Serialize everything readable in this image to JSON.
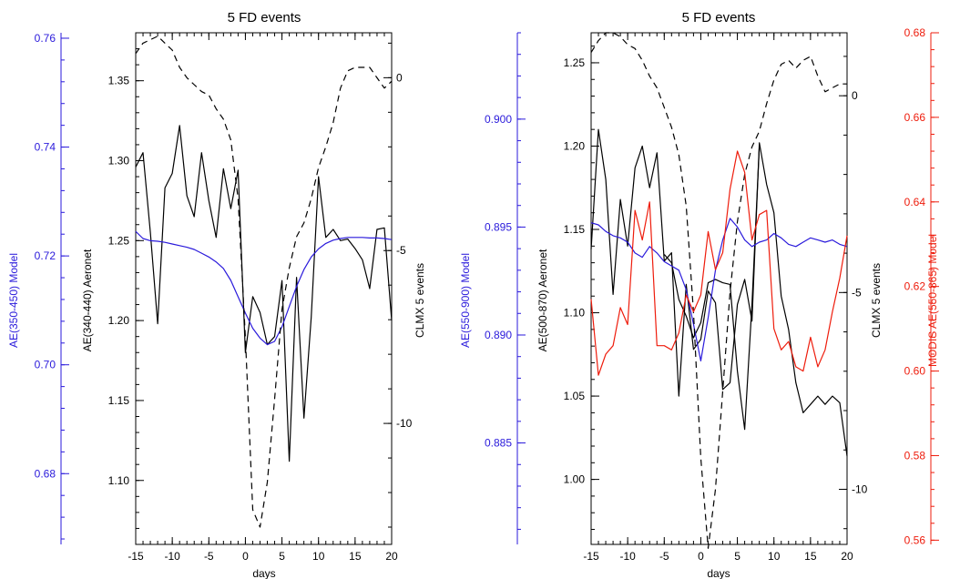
{
  "chart_data": [
    {
      "type": "line",
      "title": "5 FD events",
      "xlabel": "days",
      "xlim": [
        -15,
        20
      ],
      "xticks": [
        -15,
        -10,
        -5,
        0,
        5,
        10,
        15,
        20
      ],
      "axes": {
        "aeronet": {
          "label": "AE(340-440) Aeronet",
          "ylim": [
            1.06,
            1.38
          ],
          "ticks": [
            1.1,
            1.15,
            1.2,
            1.25,
            1.3,
            1.35
          ],
          "color": "#000000"
        },
        "model": {
          "label": "AE(350-450) Model",
          "ylim": [
            0.667,
            0.761
          ],
          "ticks": [
            0.68,
            0.7,
            0.72,
            0.74,
            0.76
          ],
          "color": "#2a1adb"
        },
        "clmx": {
          "label": "CLMX 5 events",
          "ylim": [
            -13.5,
            1.3
          ],
          "ticks": [
            -10,
            -5,
            0
          ],
          "color": "#000000"
        }
      },
      "series": [
        {
          "axis": "aeronet",
          "style": "solid",
          "color": "#000000",
          "x": [
            -15,
            -14,
            -13,
            -12,
            -11,
            -10,
            -9,
            -8,
            -7,
            -6,
            -5,
            -4,
            -3,
            -2,
            -1,
            0,
            1,
            2,
            3,
            4,
            5,
            6,
            7,
            8,
            9,
            10,
            11,
            12,
            13,
            14,
            15,
            16,
            17,
            18,
            19,
            20
          ],
          "values": [
            1.296,
            1.305,
            1.255,
            1.198,
            1.283,
            1.292,
            1.322,
            1.278,
            1.265,
            1.305,
            1.275,
            1.252,
            1.295,
            1.27,
            1.294,
            1.18,
            1.215,
            1.205,
            1.185,
            1.19,
            1.225,
            1.112,
            1.227,
            1.139,
            1.202,
            1.29,
            1.252,
            1.257,
            1.25,
            1.251,
            1.245,
            1.238,
            1.22,
            1.257,
            1.258,
            1.2
          ]
        },
        {
          "axis": "model",
          "style": "solid",
          "color": "#2a1adb",
          "x": [
            -15,
            -14,
            -13,
            -12,
            -11,
            -10,
            -9,
            -8,
            -7,
            -6,
            -5,
            -4,
            -3,
            -2,
            -1,
            0,
            1,
            2,
            3,
            4,
            5,
            6,
            7,
            8,
            9,
            10,
            11,
            12,
            13,
            14,
            15,
            16,
            17,
            18,
            19,
            20
          ],
          "values": [
            0.7245,
            0.7232,
            0.7228,
            0.7227,
            0.7225,
            0.7222,
            0.7219,
            0.7216,
            0.7212,
            0.7205,
            0.7198,
            0.7189,
            0.7177,
            0.7155,
            0.7125,
            0.7095,
            0.7067,
            0.7049,
            0.7037,
            0.7043,
            0.707,
            0.7107,
            0.7144,
            0.7175,
            0.7198,
            0.7213,
            0.7223,
            0.7229,
            0.7232,
            0.7234,
            0.7234,
            0.7234,
            0.7233,
            0.7233,
            0.7232,
            0.723
          ]
        },
        {
          "axis": "clmx",
          "style": "dashed",
          "color": "#000000",
          "x": [
            -15,
            -14,
            -13,
            -12,
            -11,
            -10,
            -9,
            -8,
            -7,
            -6,
            -5,
            -4,
            -3,
            -2,
            -1,
            0,
            1,
            2,
            3,
            4,
            5,
            6,
            7,
            8,
            9,
            10,
            11,
            12,
            13,
            14,
            15,
            16,
            17,
            18,
            19,
            20
          ],
          "values": [
            0.7,
            1.0,
            1.1,
            1.2,
            1.0,
            0.8,
            0.3,
            0.0,
            -0.2,
            -0.4,
            -0.5,
            -0.9,
            -1.2,
            -1.8,
            -3.5,
            -7.5,
            -12.5,
            -13.0,
            -11.7,
            -9.3,
            -6.7,
            -5.5,
            -4.6,
            -4.2,
            -3.5,
            -2.6,
            -2.0,
            -1.3,
            -0.3,
            0.2,
            0.3,
            0.3,
            0.3,
            0.0,
            -0.3,
            -0.1
          ]
        }
      ]
    },
    {
      "type": "line",
      "title": "5 FD events",
      "xlabel": "days",
      "xlim": [
        -15,
        20
      ],
      "xticks": [
        -15,
        -10,
        -5,
        0,
        5,
        10,
        15,
        20
      ],
      "axes": {
        "aeronet": {
          "label": "AE(500-870) Aeronet",
          "ylim": [
            0.961,
            1.268
          ],
          "ticks": [
            1.0,
            1.05,
            1.1,
            1.15,
            1.2,
            1.25
          ],
          "color": "#000000"
        },
        "model": {
          "label": "AE(550-900) Model",
          "ylim": [
            0.8803,
            0.904
          ],
          "ticks": [
            0.885,
            0.89,
            0.895,
            0.9
          ],
          "color": "#2a1adb"
        },
        "clmx": {
          "label": "CLMX 5 events",
          "ylim": [
            -11.4,
            1.6
          ],
          "ticks": [
            -10,
            -5,
            0
          ],
          "color": "#000000"
        },
        "modis": {
          "label": "MODIS AE(550-865) Model",
          "ylim": [
            0.559,
            0.68
          ],
          "ticks": [
            0.56,
            0.58,
            0.6,
            0.62,
            0.64,
            0.66,
            0.68
          ],
          "color": "#ee1c0c"
        }
      },
      "series": [
        {
          "axis": "aeronet",
          "style": "solid",
          "color": "#000000",
          "x": [
            -15,
            -14,
            -13,
            -12,
            -11,
            -10,
            -9,
            -8,
            -7,
            -6,
            -5,
            -4,
            -3,
            -2,
            -1,
            0,
            1,
            2,
            3,
            4,
            5,
            6,
            7,
            8,
            9,
            10,
            11,
            12,
            13,
            14,
            15,
            16,
            17,
            18,
            19,
            20
          ],
          "values": [
            1.138,
            1.21,
            1.18,
            1.111,
            1.168,
            1.14,
            1.187,
            1.2,
            1.175,
            1.196,
            1.131,
            1.136,
            1.05,
            1.117,
            1.078,
            1.084,
            1.113,
            1.106,
            1.054,
            1.058,
            1.105,
            1.12,
            1.095,
            1.202,
            1.177,
            1.16,
            1.11,
            1.09,
            1.058,
            1.04,
            1.045,
            1.05,
            1.045,
            1.05,
            1.046,
            1.014
          ]
        },
        {
          "axis": "aeronet",
          "style": "solid",
          "color": "#000000",
          "x": [
            -5,
            -4,
            -3,
            -2,
            -1,
            0,
            1,
            2,
            3,
            4,
            5,
            6,
            7,
            8
          ],
          "values": [
            1.135,
            1.13,
            1.108,
            1.098,
            1.085,
            1.094,
            1.118,
            1.12,
            1.118,
            1.117,
            1.065,
            1.03,
            1.105,
            1.2
          ]
        },
        {
          "axis": "model",
          "style": "solid",
          "color": "#2a1adb",
          "x": [
            -15,
            -14,
            -13,
            -12,
            -11,
            -10,
            -9,
            -8,
            -7,
            -6,
            -5,
            -4,
            -3,
            -2,
            -1,
            0,
            1,
            2,
            3,
            4,
            5,
            6,
            7,
            8,
            9,
            10,
            11,
            12,
            13,
            14,
            15,
            16,
            17,
            18,
            19,
            20
          ],
          "values": [
            0.8952,
            0.8951,
            0.8948,
            0.8946,
            0.8945,
            0.8943,
            0.8938,
            0.8936,
            0.8941,
            0.8938,
            0.8934,
            0.8932,
            0.893,
            0.8921,
            0.8905,
            0.8888,
            0.8908,
            0.893,
            0.8944,
            0.8954,
            0.895,
            0.8944,
            0.8941,
            0.8943,
            0.8944,
            0.8947,
            0.8945,
            0.8942,
            0.8941,
            0.8943,
            0.8945,
            0.8944,
            0.8943,
            0.8944,
            0.8942,
            0.8941
          ]
        },
        {
          "axis": "clmx",
          "style": "dashed",
          "color": "#000000",
          "x": [
            -15,
            -14,
            -13,
            -12,
            -11,
            -10,
            -9,
            -8,
            -7,
            -6,
            -5,
            -4,
            -3,
            -2,
            -1,
            0,
            1,
            2,
            3,
            4,
            5,
            6,
            7,
            8,
            9,
            10,
            11,
            12,
            13,
            14,
            15,
            16,
            17,
            18,
            19,
            20
          ],
          "values": [
            1.1,
            1.4,
            1.6,
            1.6,
            1.5,
            1.3,
            1.2,
            0.9,
            0.5,
            0.2,
            -0.3,
            -0.8,
            -1.5,
            -2.8,
            -5.5,
            -9.2,
            -11.5,
            -10.0,
            -7.5,
            -5.0,
            -3.2,
            -2.0,
            -1.3,
            -0.9,
            -0.2,
            0.4,
            0.8,
            0.9,
            0.7,
            0.9,
            1.0,
            0.5,
            0.1,
            0.2,
            0.3,
            0.3
          ]
        },
        {
          "axis": "modis",
          "style": "solid",
          "color": "#ee1c0c",
          "x": [
            -15,
            -14,
            -13,
            -12,
            -11,
            -10,
            -9,
            -8,
            -7,
            -6,
            -5,
            -4,
            -3,
            -2,
            -1,
            0,
            1,
            2,
            3,
            4,
            5,
            6,
            7,
            8,
            9,
            10,
            11,
            12,
            13,
            14,
            15,
            16,
            17,
            18,
            19,
            20
          ],
          "values": [
            0.617,
            0.599,
            0.604,
            0.606,
            0.615,
            0.611,
            0.638,
            0.631,
            0.64,
            0.606,
            0.606,
            0.605,
            0.609,
            0.618,
            0.614,
            0.618,
            0.633,
            0.624,
            0.628,
            0.643,
            0.652,
            0.647,
            0.631,
            0.637,
            0.638,
            0.61,
            0.605,
            0.607,
            0.601,
            0.6,
            0.608,
            0.601,
            0.605,
            0.614,
            0.622,
            0.632
          ]
        }
      ]
    }
  ]
}
